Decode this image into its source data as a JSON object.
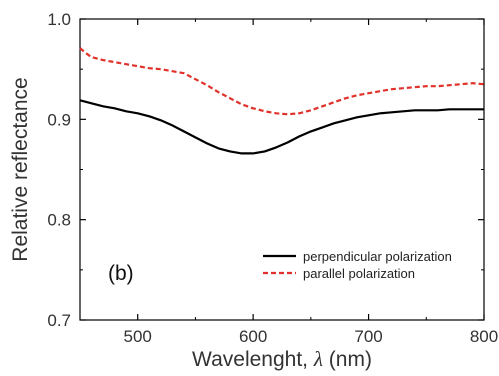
{
  "chart_data": {
    "type": "line",
    "xlabel_main": "Wavelenght, ",
    "xlabel_symbol": "λ",
    "xlabel_unit": " (nm)",
    "ylabel": "Relative reflectance",
    "xlim": [
      450,
      800
    ],
    "ylim": [
      0.7,
      1.0
    ],
    "xticks": [
      500,
      600,
      700,
      800
    ],
    "yticks": [
      0.7,
      0.8,
      0.9,
      1.0
    ],
    "ytick_labels": [
      "0.7",
      "0.8",
      "0.9",
      "1.0"
    ],
    "grid": false,
    "legend_position": "bottom-right",
    "annotation": "(b)",
    "series": [
      {
        "name": "perpendicular polarization",
        "color": "#000000",
        "style": "solid",
        "x": [
          450,
          460,
          470,
          480,
          490,
          500,
          510,
          520,
          530,
          540,
          550,
          560,
          570,
          580,
          590,
          600,
          610,
          620,
          630,
          640,
          650,
          660,
          670,
          680,
          690,
          700,
          710,
          720,
          730,
          740,
          750,
          760,
          770,
          780,
          790,
          800
        ],
        "y": [
          0.919,
          0.916,
          0.913,
          0.911,
          0.908,
          0.906,
          0.903,
          0.899,
          0.894,
          0.888,
          0.882,
          0.876,
          0.871,
          0.868,
          0.866,
          0.866,
          0.868,
          0.872,
          0.877,
          0.883,
          0.888,
          0.892,
          0.896,
          0.899,
          0.902,
          0.904,
          0.906,
          0.907,
          0.908,
          0.909,
          0.909,
          0.909,
          0.91,
          0.91,
          0.91,
          0.91
        ]
      },
      {
        "name": "parallel polarization",
        "color": "#e0312a",
        "style": "dashed",
        "x": [
          450,
          455,
          460,
          470,
          480,
          490,
          500,
          510,
          520,
          530,
          540,
          550,
          560,
          570,
          580,
          590,
          600,
          610,
          620,
          630,
          640,
          650,
          660,
          670,
          680,
          690,
          700,
          710,
          720,
          730,
          740,
          750,
          760,
          770,
          780,
          790,
          800
        ],
        "y": [
          0.971,
          0.966,
          0.962,
          0.959,
          0.957,
          0.955,
          0.953,
          0.951,
          0.95,
          0.948,
          0.946,
          0.94,
          0.934,
          0.927,
          0.921,
          0.915,
          0.911,
          0.908,
          0.906,
          0.905,
          0.906,
          0.909,
          0.913,
          0.917,
          0.921,
          0.924,
          0.926,
          0.928,
          0.93,
          0.931,
          0.932,
          0.933,
          0.933,
          0.934,
          0.935,
          0.936,
          0.935
        ]
      }
    ]
  }
}
